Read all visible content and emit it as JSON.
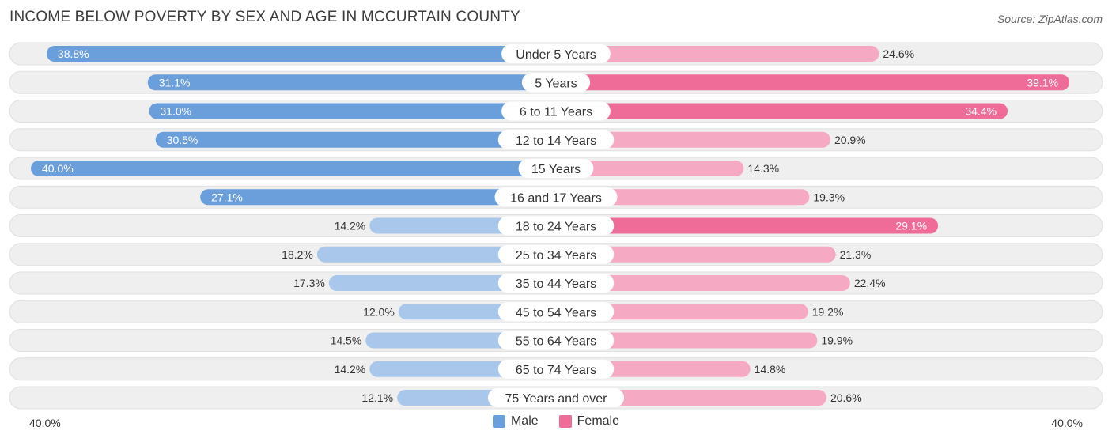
{
  "title": "INCOME BELOW POVERTY BY SEX AND AGE IN MCCURTAIN COUNTY",
  "source": "Source: ZipAtlas.com",
  "colors": {
    "male_strong": "#6a9fdc",
    "male_light": "#a9c7ea",
    "female_strong": "#f06c98",
    "female_light": "#f6a9c3",
    "row_bg": "#efefef",
    "row_border": "#e0e0e0"
  },
  "legend": {
    "male_label": "Male",
    "female_label": "Female"
  },
  "axis": {
    "left_label": "40.0%",
    "right_label": "40.0%"
  },
  "chart_data": {
    "type": "bar",
    "orientation": "diverging-horizontal",
    "xlim": [
      -40,
      40
    ],
    "categories": [
      "Under 5 Years",
      "5 Years",
      "6 to 11 Years",
      "12 to 14 Years",
      "15 Years",
      "16 and 17 Years",
      "18 to 24 Years",
      "25 to 34 Years",
      "35 to 44 Years",
      "45 to 54 Years",
      "55 to 64 Years",
      "65 to 74 Years",
      "75 Years and over"
    ],
    "series": [
      {
        "name": "Male",
        "values": [
          38.8,
          31.1,
          31.0,
          30.5,
          40.0,
          27.1,
          14.2,
          18.2,
          17.3,
          12.0,
          14.5,
          14.2,
          12.1
        ],
        "labels": [
          "38.8%",
          "31.1%",
          "31.0%",
          "30.5%",
          "40.0%",
          "27.1%",
          "14.2%",
          "18.2%",
          "17.3%",
          "12.0%",
          "14.5%",
          "14.2%",
          "12.1%"
        ]
      },
      {
        "name": "Female",
        "values": [
          24.6,
          39.1,
          34.4,
          20.9,
          14.3,
          19.3,
          29.1,
          21.3,
          22.4,
          19.2,
          19.9,
          14.8,
          20.6
        ],
        "labels": [
          "24.6%",
          "39.1%",
          "34.4%",
          "20.9%",
          "14.3%",
          "19.3%",
          "29.1%",
          "21.3%",
          "22.4%",
          "19.2%",
          "19.9%",
          "14.8%",
          "20.6%"
        ]
      }
    ],
    "legend_position": "bottom-center"
  }
}
